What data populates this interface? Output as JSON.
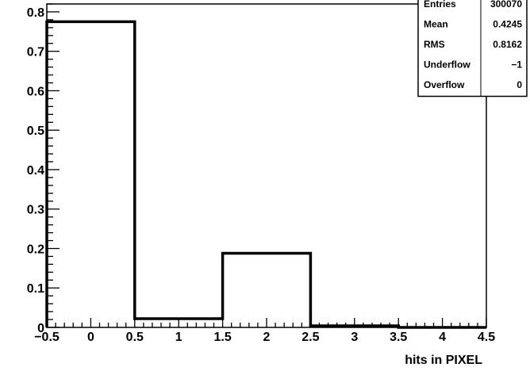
{
  "chart_data": {
    "type": "bar",
    "x_edges": [
      -0.5,
      0.5,
      1.5,
      2.5,
      3.5,
      4.5
    ],
    "x_centers": [
      0,
      1,
      2,
      3,
      4
    ],
    "values": [
      0.775,
      0.022,
      0.188,
      0.004,
      0.0
    ],
    "xlim": [
      -0.5,
      4.5
    ],
    "ylim": [
      0,
      0.82
    ],
    "xlabel": "hits in PIXEL",
    "ylabel": "",
    "title": "",
    "grid": false,
    "x_ticks": [
      -0.5,
      0,
      0.5,
      1,
      1.5,
      2,
      2.5,
      3,
      3.5,
      4,
      4.5
    ],
    "x_tick_labels": [
      "−0.5",
      "0",
      "0.5",
      "1",
      "1.5",
      "2",
      "2.5",
      "3",
      "3.5",
      "4",
      "4.5"
    ],
    "y_ticks": [
      0,
      0.1,
      0.2,
      0.3,
      0.4,
      0.5,
      0.6,
      0.7,
      0.8
    ],
    "y_tick_labels": [
      "0",
      "0.1",
      "0.2",
      "0.3",
      "0.4",
      "0.5",
      "0.6",
      "0.7",
      "0.8"
    ],
    "stats_box": {
      "placement": "top-right",
      "rows": [
        {
          "label": "Entries",
          "value": "300070"
        },
        {
          "label": "Mean",
          "value": "0.4245"
        },
        {
          "label": "RMS",
          "value": "0.8162"
        },
        {
          "label": "Underflow",
          "value": "−1"
        },
        {
          "label": "Overflow",
          "value": "0"
        }
      ]
    },
    "colors": {
      "line": "#000000",
      "background": "#ffffff"
    }
  }
}
